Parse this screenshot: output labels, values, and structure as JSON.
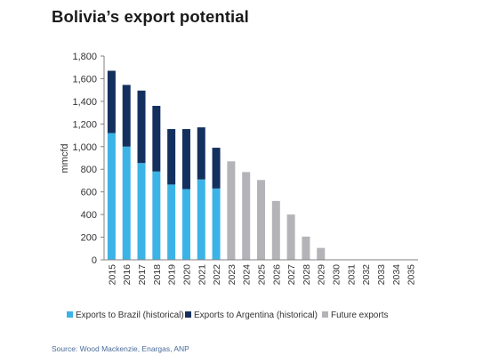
{
  "title": "Bolivia’s export potential",
  "source": "Source: Wood Mackenzie,  Enargas, ANP",
  "colors": {
    "brazil": "#3cb3e6",
    "argentina": "#14305e",
    "future": "#b4b4b8",
    "axis": "#808080"
  },
  "chart_data": {
    "type": "bar",
    "stacked": true,
    "ylabel": "mmcfd",
    "xlabel": "",
    "ylim": [
      0,
      1800
    ],
    "yticks": [
      "0",
      "200",
      "400",
      "600",
      "800",
      "1,000",
      "1,200",
      "1,400",
      "1,600",
      "1,800"
    ],
    "categories": [
      "2015",
      "2016",
      "2017",
      "2018",
      "2019",
      "2020",
      "2021",
      "2022",
      "2023",
      "2024",
      "2025",
      "2026",
      "2027",
      "2028",
      "2029",
      "2030",
      "2031",
      "2032",
      "2033",
      "2034",
      "2035"
    ],
    "series": [
      {
        "name": "Exports to Brazil (historical)",
        "values": [
          1120,
          1000,
          855,
          780,
          665,
          625,
          710,
          630,
          0,
          0,
          0,
          0,
          0,
          0,
          0,
          0,
          0,
          0,
          0,
          0,
          0
        ]
      },
      {
        "name": "Exports to Argentina (historical)",
        "values": [
          550,
          545,
          640,
          580,
          490,
          530,
          460,
          360,
          0,
          0,
          0,
          0,
          0,
          0,
          0,
          0,
          0,
          0,
          0,
          0,
          0
        ]
      },
      {
        "name": "Future exports",
        "values": [
          0,
          0,
          0,
          0,
          0,
          0,
          0,
          0,
          870,
          775,
          705,
          520,
          400,
          205,
          105,
          0,
          0,
          0,
          0,
          0,
          0
        ]
      }
    ],
    "legend_position": "bottom",
    "grid": false
  }
}
